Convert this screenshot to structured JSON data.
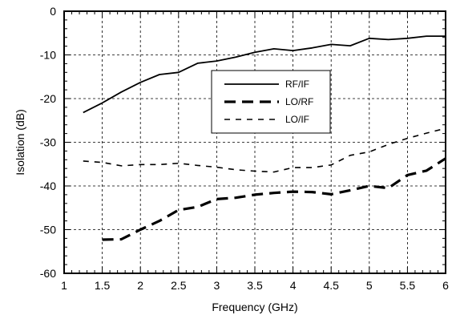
{
  "chart_data": {
    "type": "line",
    "xlabel": "Frequency (GHz)",
    "ylabel": "Isolation (dB)",
    "xlim": [
      1,
      6
    ],
    "ylim": [
      -60,
      0
    ],
    "xticks": [
      1,
      1.5,
      2,
      2.5,
      3,
      3.5,
      4,
      4.5,
      5,
      5.5,
      6
    ],
    "xtick_labels": [
      "1",
      "1.5",
      "2",
      "2.5",
      "3",
      "3.5",
      "4",
      "4.5",
      "5",
      "5.5",
      "6"
    ],
    "yticks": [
      -60,
      -50,
      -40,
      -30,
      -20,
      -10,
      0
    ],
    "ytick_labels": [
      "-60",
      "-50",
      "-40",
      "-30",
      "-20",
      "-10",
      "0"
    ],
    "grid": true,
    "legend_position": "center-right",
    "series": [
      {
        "name": "RF/IF",
        "style": "solid",
        "x": [
          1.25,
          1.5,
          1.75,
          2.0,
          2.25,
          2.5,
          2.75,
          3.0,
          3.25,
          3.5,
          3.75,
          4.0,
          4.25,
          4.5,
          4.75,
          5.0,
          5.25,
          5.5,
          5.75,
          6.0
        ],
        "y": [
          -23.2,
          -21.0,
          -18.5,
          -16.3,
          -14.5,
          -14.0,
          -11.9,
          -11.4,
          -10.5,
          -9.4,
          -8.6,
          -9.0,
          -8.4,
          -7.6,
          -7.9,
          -6.2,
          -6.5,
          -6.2,
          -5.7,
          -5.7
        ]
      },
      {
        "name": "LO/RF",
        "style": "long-dash-thick",
        "x": [
          1.5,
          1.75,
          2.0,
          2.25,
          2.5,
          2.75,
          3.0,
          3.25,
          3.5,
          3.75,
          4.0,
          4.25,
          4.5,
          4.75,
          5.0,
          5.25,
          5.5,
          5.75,
          6.0
        ],
        "y": [
          -52.3,
          -52.2,
          -50.0,
          -48.0,
          -45.5,
          -44.8,
          -43.0,
          -42.7,
          -42.0,
          -41.6,
          -41.3,
          -41.4,
          -41.9,
          -41.0,
          -40.0,
          -40.5,
          -37.5,
          -36.5,
          -33.7
        ]
      },
      {
        "name": "LO/IF",
        "style": "short-dash",
        "x": [
          1.25,
          1.5,
          1.75,
          2.0,
          2.25,
          2.5,
          2.75,
          3.0,
          3.25,
          3.5,
          3.75,
          4.0,
          4.25,
          4.5,
          4.75,
          5.0,
          5.25,
          5.5,
          5.75,
          6.0
        ],
        "y": [
          -34.3,
          -34.6,
          -35.4,
          -35.1,
          -35.1,
          -34.8,
          -35.3,
          -35.7,
          -36.3,
          -36.6,
          -36.8,
          -35.8,
          -35.8,
          -35.2,
          -33.0,
          -32.2,
          -30.5,
          -29.1,
          -27.9,
          -26.8
        ]
      }
    ]
  }
}
